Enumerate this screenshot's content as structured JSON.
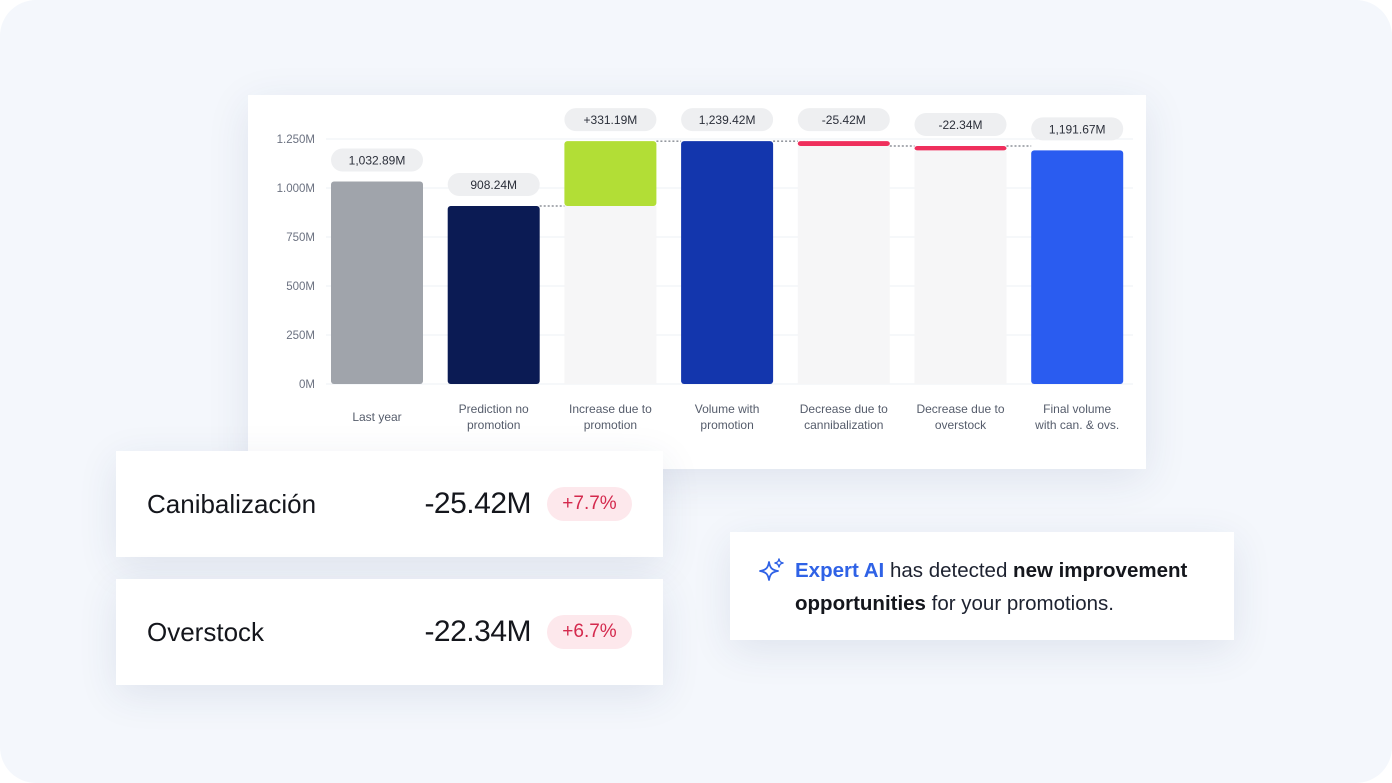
{
  "chart_data": {
    "type": "waterfall",
    "unit": "M",
    "ylim": [
      0,
      1250
    ],
    "y_ticks": [
      0,
      250,
      500,
      750,
      1000,
      1250
    ],
    "y_tick_labels": [
      "0M",
      "250M",
      "500M",
      "750M",
      "1.000M",
      "1.250M"
    ],
    "bars": [
      {
        "label_lines": [
          "Last year"
        ],
        "kind": "total",
        "base": 0,
        "top": 1032.89,
        "value_label": "1,032.89M",
        "color": "#a0a4ab"
      },
      {
        "label_lines": [
          "Prediction no",
          "promotion"
        ],
        "kind": "total",
        "base": 0,
        "top": 908.24,
        "value_label": "908.24M",
        "color": "#0b1b54"
      },
      {
        "label_lines": [
          "Increase due to",
          "promotion"
        ],
        "kind": "delta",
        "base": 908.24,
        "top": 1239.42,
        "value_label": "+331.19M",
        "color": "#b2de36"
      },
      {
        "label_lines": [
          "Volume with",
          "promotion"
        ],
        "kind": "total",
        "base": 0,
        "top": 1239.42,
        "value_label": "1,239.42M",
        "color": "#1336ad"
      },
      {
        "label_lines": [
          "Decrease due to",
          "cannibalization"
        ],
        "kind": "delta",
        "base": 1214.0,
        "top": 1239.42,
        "value_label": "-25.42M",
        "color": "#ef2f5c"
      },
      {
        "label_lines": [
          "Decrease due to",
          "overstock"
        ],
        "kind": "delta",
        "base": 1191.67,
        "top": 1214.0,
        "value_label": "-22.34M",
        "color": "#ef2f5c"
      },
      {
        "label_lines": [
          "Final volume",
          "with can. & ovs."
        ],
        "kind": "total",
        "base": 0,
        "top": 1191.67,
        "value_label": "1,191.67M",
        "color": "#2a5cf0"
      }
    ],
    "connectors": [
      [
        2,
        3
      ],
      [
        3,
        4
      ],
      [
        5,
        6
      ]
    ]
  },
  "metrics": [
    {
      "name": "Canibalización",
      "value": "-25.42M",
      "change": "+7.7%"
    },
    {
      "name": "Overstock",
      "value": "-22.34M",
      "change": "+6.7%"
    }
  ],
  "ai_message": {
    "brand": "Expert AI",
    "text_1": " has detected ",
    "strong_1": "new improvement opportunities",
    "text_2": " for your promotions.",
    "icon": "sparkle-icon"
  },
  "colors": {
    "accent_blue": "#2f62e6",
    "badge_bg": "#fde8ec",
    "badge_text": "#d4294d"
  }
}
